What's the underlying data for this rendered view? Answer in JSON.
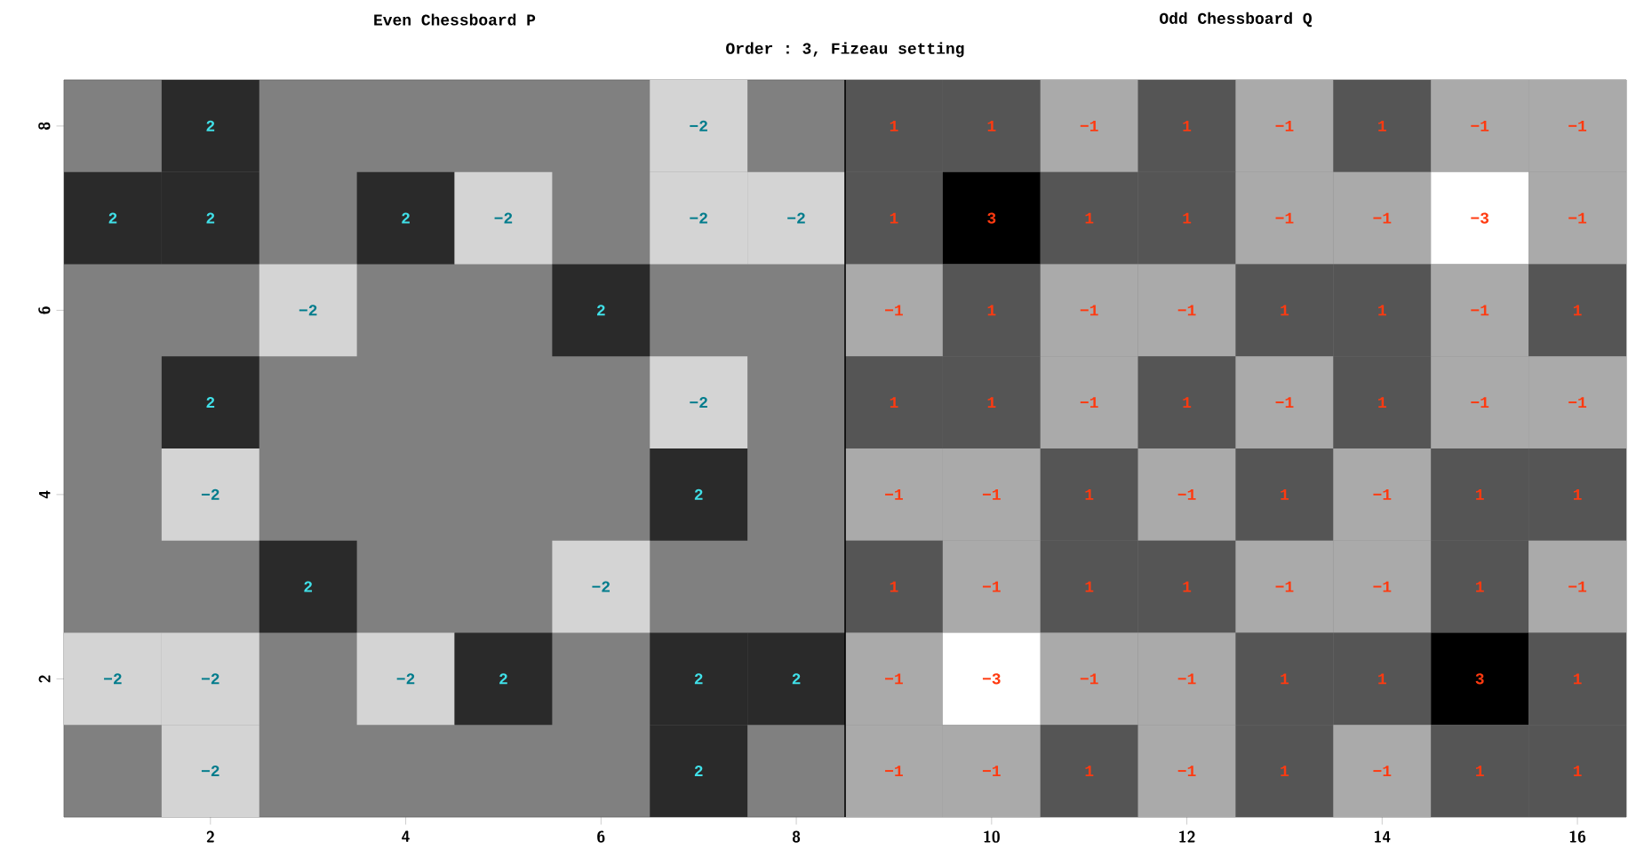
{
  "chart_data": {
    "type": "heatmap",
    "title": "Order : 3, Fizeau setting",
    "annotations": [
      "Even Chessboard P",
      "Odd Chessboard Q"
    ],
    "categories": [
      null,
      "2",
      null,
      "4",
      null,
      "6",
      null,
      "8",
      null,
      "10",
      null,
      "12",
      null,
      "14",
      null,
      "16"
    ],
    "y_categories": [
      "8",
      null,
      "6",
      null,
      "4",
      null,
      "2",
      null
    ],
    "cells": [
      [
        null,
        2,
        null,
        null,
        null,
        null,
        -2,
        null,
        1,
        1,
        -1,
        1,
        -1,
        1,
        -1,
        -1
      ],
      [
        2,
        2,
        null,
        2,
        -2,
        null,
        -2,
        -2,
        1,
        3,
        1,
        1,
        -1,
        -1,
        -3,
        -1
      ],
      [
        null,
        null,
        -2,
        null,
        null,
        2,
        null,
        null,
        -1,
        1,
        -1,
        -1,
        1,
        1,
        -1,
        1
      ],
      [
        null,
        2,
        null,
        null,
        null,
        null,
        -2,
        null,
        1,
        1,
        -1,
        1,
        -1,
        1,
        -1,
        -1
      ],
      [
        null,
        -2,
        null,
        null,
        null,
        null,
        2,
        null,
        -1,
        -1,
        1,
        -1,
        1,
        -1,
        1,
        1
      ],
      [
        null,
        null,
        2,
        null,
        null,
        -2,
        null,
        null,
        1,
        -1,
        1,
        1,
        -1,
        -1,
        1,
        -1
      ],
      [
        -2,
        -2,
        null,
        -2,
        2,
        null,
        2,
        2,
        -1,
        -3,
        -1,
        -1,
        1,
        1,
        3,
        1
      ],
      [
        null,
        -2,
        null,
        null,
        null,
        null,
        2,
        null,
        -1,
        -1,
        1,
        -1,
        1,
        -1,
        1,
        1
      ]
    ],
    "data_labels": true
  }
}
